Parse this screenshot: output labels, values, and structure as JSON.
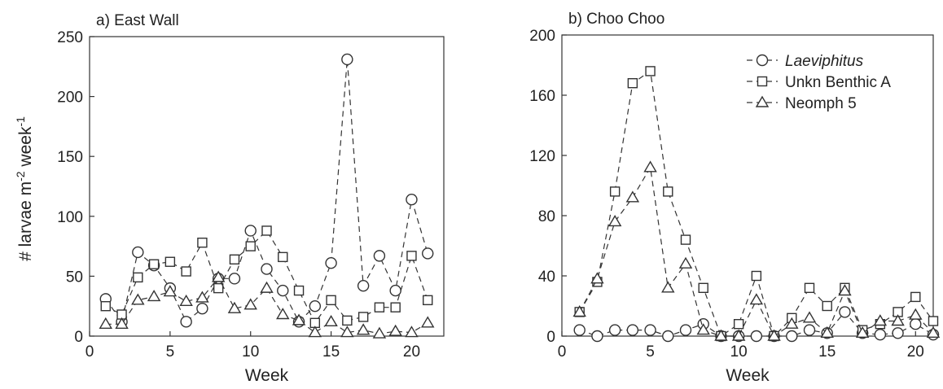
{
  "colors": {
    "ink": "#333333",
    "background": "#ffffff"
  },
  "shared_ylabel": {
    "main": "# larvae m",
    "sup1": "-2",
    "mid": " week",
    "sup2": "-1"
  },
  "legend": {
    "placement": "top-right of panel b",
    "entries": [
      {
        "label": "Laeviphitus",
        "marker": "circle",
        "italic": true
      },
      {
        "label": "Unkn Benthic A",
        "marker": "square",
        "italic": false
      },
      {
        "label": "Neomph 5",
        "marker": "triangle",
        "italic": false
      }
    ]
  },
  "chart_data": [
    {
      "type": "line",
      "title": "a) East Wall",
      "xlabel": "Week",
      "ylabel": "",
      "xlim": [
        0,
        22
      ],
      "ylim": [
        0,
        250
      ],
      "xticks": [
        0,
        5,
        10,
        15,
        20
      ],
      "yticks": [
        0,
        50,
        100,
        150,
        200,
        250
      ],
      "grid": false,
      "line_style": "dashed",
      "x": [
        1,
        2,
        3,
        4,
        5,
        6,
        7,
        8,
        9,
        10,
        11,
        12,
        13,
        14,
        15,
        16,
        17,
        18,
        19,
        20,
        21
      ],
      "series": [
        {
          "name": "Laeviphitus",
          "marker": "circle",
          "values": [
            31,
            12,
            70,
            59,
            40,
            12,
            23,
            48,
            48,
            88,
            56,
            38,
            12,
            25,
            61,
            231,
            42,
            67,
            38,
            114,
            69
          ]
        },
        {
          "name": "Unkn Benthic A",
          "marker": "square",
          "values": [
            25,
            18,
            49,
            60,
            62,
            54,
            78,
            40,
            64,
            75,
            88,
            66,
            38,
            11,
            30,
            13,
            16,
            24,
            24,
            67,
            30
          ]
        },
        {
          "name": "Neomph 5",
          "marker": "triangle",
          "values": [
            10,
            10,
            30,
            33,
            37,
            29,
            32,
            49,
            23,
            26,
            40,
            18,
            13,
            3,
            12,
            3,
            5,
            2,
            4,
            3,
            11
          ]
        }
      ]
    },
    {
      "type": "line",
      "title": "b) Choo Choo",
      "xlabel": "Week",
      "ylabel": "",
      "xlim": [
        0,
        21
      ],
      "ylim": [
        0,
        200
      ],
      "xticks": [
        0,
        5,
        10,
        15,
        20
      ],
      "yticks": [
        0,
        40,
        80,
        120,
        160,
        200
      ],
      "grid": false,
      "line_style": "dashed",
      "x": [
        1,
        2,
        3,
        4,
        5,
        6,
        7,
        8,
        9,
        10,
        11,
        12,
        13,
        14,
        15,
        16,
        17,
        18,
        19,
        20,
        21
      ],
      "series": [
        {
          "name": "Laeviphitus",
          "marker": "circle",
          "values": [
            4,
            0,
            4,
            4,
            4,
            0,
            4,
            8,
            0,
            0,
            0,
            0,
            0,
            4,
            2,
            16,
            2,
            1,
            2,
            8,
            1
          ]
        },
        {
          "name": "Unkn Benthic A",
          "marker": "square",
          "values": [
            16,
            36,
            96,
            168,
            176,
            96,
            64,
            32,
            0,
            8,
            40,
            0,
            12,
            32,
            20,
            32,
            4,
            8,
            16,
            26,
            10
          ]
        },
        {
          "name": "Neomph 5",
          "marker": "triangle",
          "values": [
            16,
            38,
            76,
            92,
            112,
            32,
            48,
            4,
            0,
            0,
            24,
            0,
            8,
            12,
            2,
            30,
            2,
            10,
            10,
            14,
            2
          ]
        }
      ]
    }
  ]
}
